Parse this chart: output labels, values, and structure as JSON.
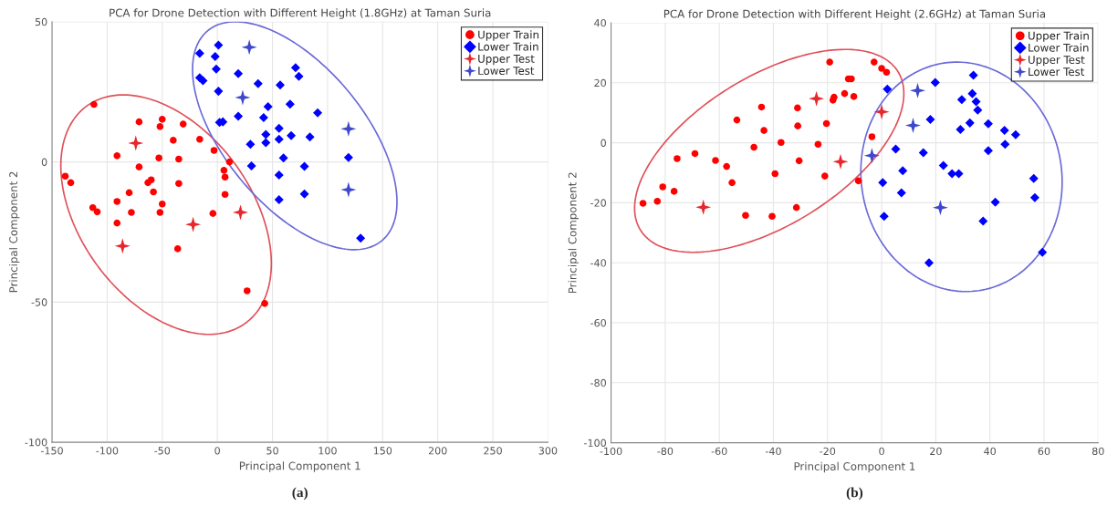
{
  "chart_data": [
    {
      "type": "scatter",
      "title": "PCA for Drone Detection with Different Height (1.8GHz) at Taman Suria",
      "xlabel": "Principal Component 1",
      "ylabel": "Principal Component 2",
      "xlim": [
        -150,
        300
      ],
      "ylim": [
        -100,
        50
      ],
      "xticks": [
        -150,
        -100,
        -50,
        0,
        50,
        100,
        150,
        200,
        250,
        300
      ],
      "yticks": [
        -100,
        -50,
        0,
        50
      ],
      "grid": true,
      "legend": "top right",
      "annotations": [
        "(a)"
      ],
      "series": [
        {
          "name": "Upper Train",
          "color": "#ff0000",
          "marker": "circle",
          "x": [
            -112,
            -71,
            -50,
            -52,
            -31,
            -40,
            -16,
            -3,
            11,
            -91,
            -53,
            -35,
            -71,
            -138,
            -133,
            -63,
            -60,
            -58,
            -35,
            6,
            7,
            7,
            -80,
            -91,
            -113,
            -109,
            -78,
            -52,
            -50,
            -91,
            -4,
            -36,
            27,
            43
          ],
          "values": [
            20.5,
            14.3,
            15.2,
            12.6,
            13.5,
            7.7,
            8.1,
            4.1,
            0,
            2.2,
            1.4,
            1,
            -1.8,
            -5.1,
            -7.4,
            -7.4,
            -6.4,
            -10.7,
            -7.7,
            -3,
            -5.4,
            -11.6,
            -11,
            -14.1,
            -16.3,
            -17.8,
            -18,
            -18,
            -15,
            -21.8,
            -18.4,
            -31,
            -46,
            -50.5
          ]
        },
        {
          "name": "Lower Train",
          "color": "#0000ff",
          "marker": "diamond",
          "x": [
            -16,
            1,
            -2,
            -1,
            -16,
            -13,
            19,
            1,
            37,
            57,
            71,
            74,
            46,
            66,
            91,
            19,
            42,
            2,
            5,
            56,
            44,
            44,
            56,
            67,
            84,
            30,
            60,
            31,
            79,
            119,
            56,
            79,
            56,
            130
          ],
          "values": [
            38.7,
            41.7,
            37.6,
            33.1,
            30,
            29,
            31.5,
            25.2,
            27.9,
            27.4,
            33.6,
            30.5,
            19.7,
            20.6,
            17.5,
            16.3,
            15.8,
            14.1,
            14.3,
            12,
            9.8,
            6.9,
            8.1,
            9.4,
            8.9,
            6.3,
            1.4,
            -1.4,
            -1.6,
            1.6,
            -4.7,
            -11.4,
            -13.5,
            -27.2
          ]
        },
        {
          "name": "Upper Test",
          "color": "#e8262b",
          "marker": "star",
          "x": [
            -74,
            -22,
            21,
            -86
          ],
          "values": [
            6.7,
            -22.3,
            -18,
            -30
          ]
        },
        {
          "name": "Lower Test",
          "color": "#3f48cc",
          "marker": "star",
          "x": [
            29,
            23,
            119,
            119
          ],
          "values": [
            40.9,
            23,
            11.8,
            -9.9
          ]
        }
      ]
    },
    {
      "type": "scatter",
      "title": "PCA for Drone Detection with Different Height (2.6GHz) at Taman Suria",
      "xlabel": "Principal Component 1",
      "ylabel": "Principal Component 2",
      "xlim": [
        -100,
        80
      ],
      "ylim": [
        -100,
        40
      ],
      "xticks": [
        -100,
        -80,
        -60,
        -40,
        -20,
        0,
        20,
        40,
        60,
        80
      ],
      "yticks": [
        -100,
        -80,
        -60,
        -40,
        -20,
        0,
        20,
        40
      ],
      "grid": true,
      "legend": "top right",
      "annotations": [
        "(b)"
      ],
      "series": [
        {
          "name": "Upper Train",
          "color": "#ff0000",
          "marker": "circle",
          "x": [
            -88.2,
            -82.9,
            -80.9,
            -76.7,
            -75.6,
            -69,
            -61.4,
            -57.3,
            -55.3,
            -53.5,
            -50.3,
            -47.2,
            -44.4,
            -43.5,
            -40.5,
            -39.4,
            -37.2,
            -31.5,
            -31.1,
            -31,
            -30.5,
            -23.5,
            -21,
            -20.4,
            -19.2,
            -17.6,
            -18,
            -2.8,
            0,
            1.8,
            -12.3,
            -11.2,
            -13.7,
            -10.3,
            -3.6,
            -8.6
          ],
          "values": [
            -20.2,
            -19.5,
            -14.7,
            -16.2,
            -5.3,
            -3.6,
            -5.9,
            -7.9,
            -13.3,
            7.6,
            -24.2,
            -1.5,
            11.9,
            4.1,
            -24.5,
            -10.3,
            0.1,
            -21.6,
            11.6,
            5.6,
            -6,
            -0.5,
            -11.1,
            6.4,
            26.9,
            15.2,
            14.2,
            26.9,
            24.8,
            23.5,
            21.3,
            21.3,
            16.4,
            15.4,
            2,
            -12.7
          ]
        },
        {
          "name": "Lower Train",
          "color": "#0000ff",
          "marker": "diamond",
          "x": [
            2.1,
            19.8,
            33.9,
            33.5,
            34.9,
            35.5,
            29.6,
            18,
            32.6,
            29.1,
            39.4,
            45.4,
            49.5,
            45.6,
            5.2,
            15.4,
            39.4,
            22.8,
            26,
            28.5,
            7.8,
            0.4,
            7.3,
            56.2,
            56.6,
            42,
            0.9,
            37.5,
            59.4,
            17.5
          ],
          "values": [
            17.9,
            20.1,
            22.5,
            16.4,
            13.7,
            10.9,
            14.4,
            7.8,
            6.6,
            4.4,
            6.3,
            4.1,
            2.7,
            -0.5,
            -2.1,
            -3.3,
            -2.6,
            -7.6,
            -10.3,
            -10.3,
            -9.3,
            -13.3,
            -16.7,
            -11.9,
            -18.3,
            -19.8,
            -24.5,
            -26.1,
            -36.5,
            -40
          ]
        },
        {
          "name": "Upper Test",
          "color": "#e8262b",
          "marker": "star",
          "x": [
            -65.9,
            -24.1,
            0,
            -15.2
          ],
          "values": [
            -21.5,
            14.7,
            10.3,
            -6.3
          ]
        },
        {
          "name": "Lower Test",
          "color": "#3f48cc",
          "marker": "star",
          "x": [
            13.3,
            11.6,
            -3.6,
            21.7
          ],
          "values": [
            17.4,
            5.8,
            -4.3,
            -21.6
          ]
        }
      ]
    }
  ]
}
